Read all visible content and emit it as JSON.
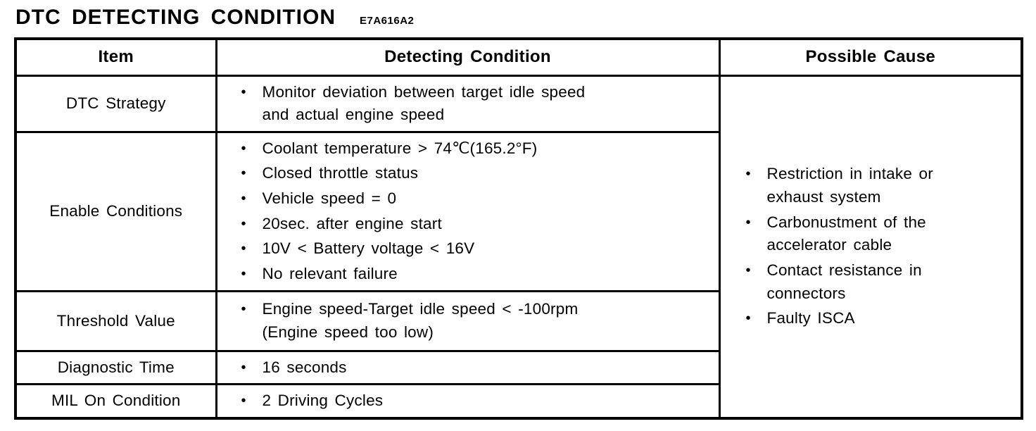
{
  "page": {
    "title": "DTC DETECTING CONDITION",
    "code": "E7A616A2"
  },
  "colors": {
    "ink": "#000000",
    "paper": "#ffffff"
  },
  "table": {
    "headers": [
      "Item",
      "Detecting Condition",
      "Possible Cause"
    ],
    "rows": [
      {
        "item": "DTC Strategy",
        "conditions": [
          "Monitor deviation between target idle speed\nand actual engine speed"
        ]
      },
      {
        "item": "Enable Conditions",
        "conditions": [
          "Coolant temperature > 74℃(165.2°F)",
          "Closed throttle status",
          "Vehicle speed = 0",
          "20sec. after engine start",
          "10V < Battery voltage < 16V",
          "No relevant failure"
        ]
      },
      {
        "item": "Threshold Value",
        "conditions": [
          "Engine speed-Target idle speed < -100rpm\n(Engine speed too low)"
        ]
      },
      {
        "item": "Diagnostic Time",
        "conditions": [
          "16 seconds"
        ]
      },
      {
        "item": "MIL On Condition",
        "conditions": [
          "2 Driving Cycles"
        ]
      }
    ],
    "possible_cause": [
      "Restriction in intake or\nexhaust system",
      "Carbonustment of the\naccelerator cable",
      "Contact resistance in\nconnectors",
      "Faulty ISCA"
    ]
  }
}
